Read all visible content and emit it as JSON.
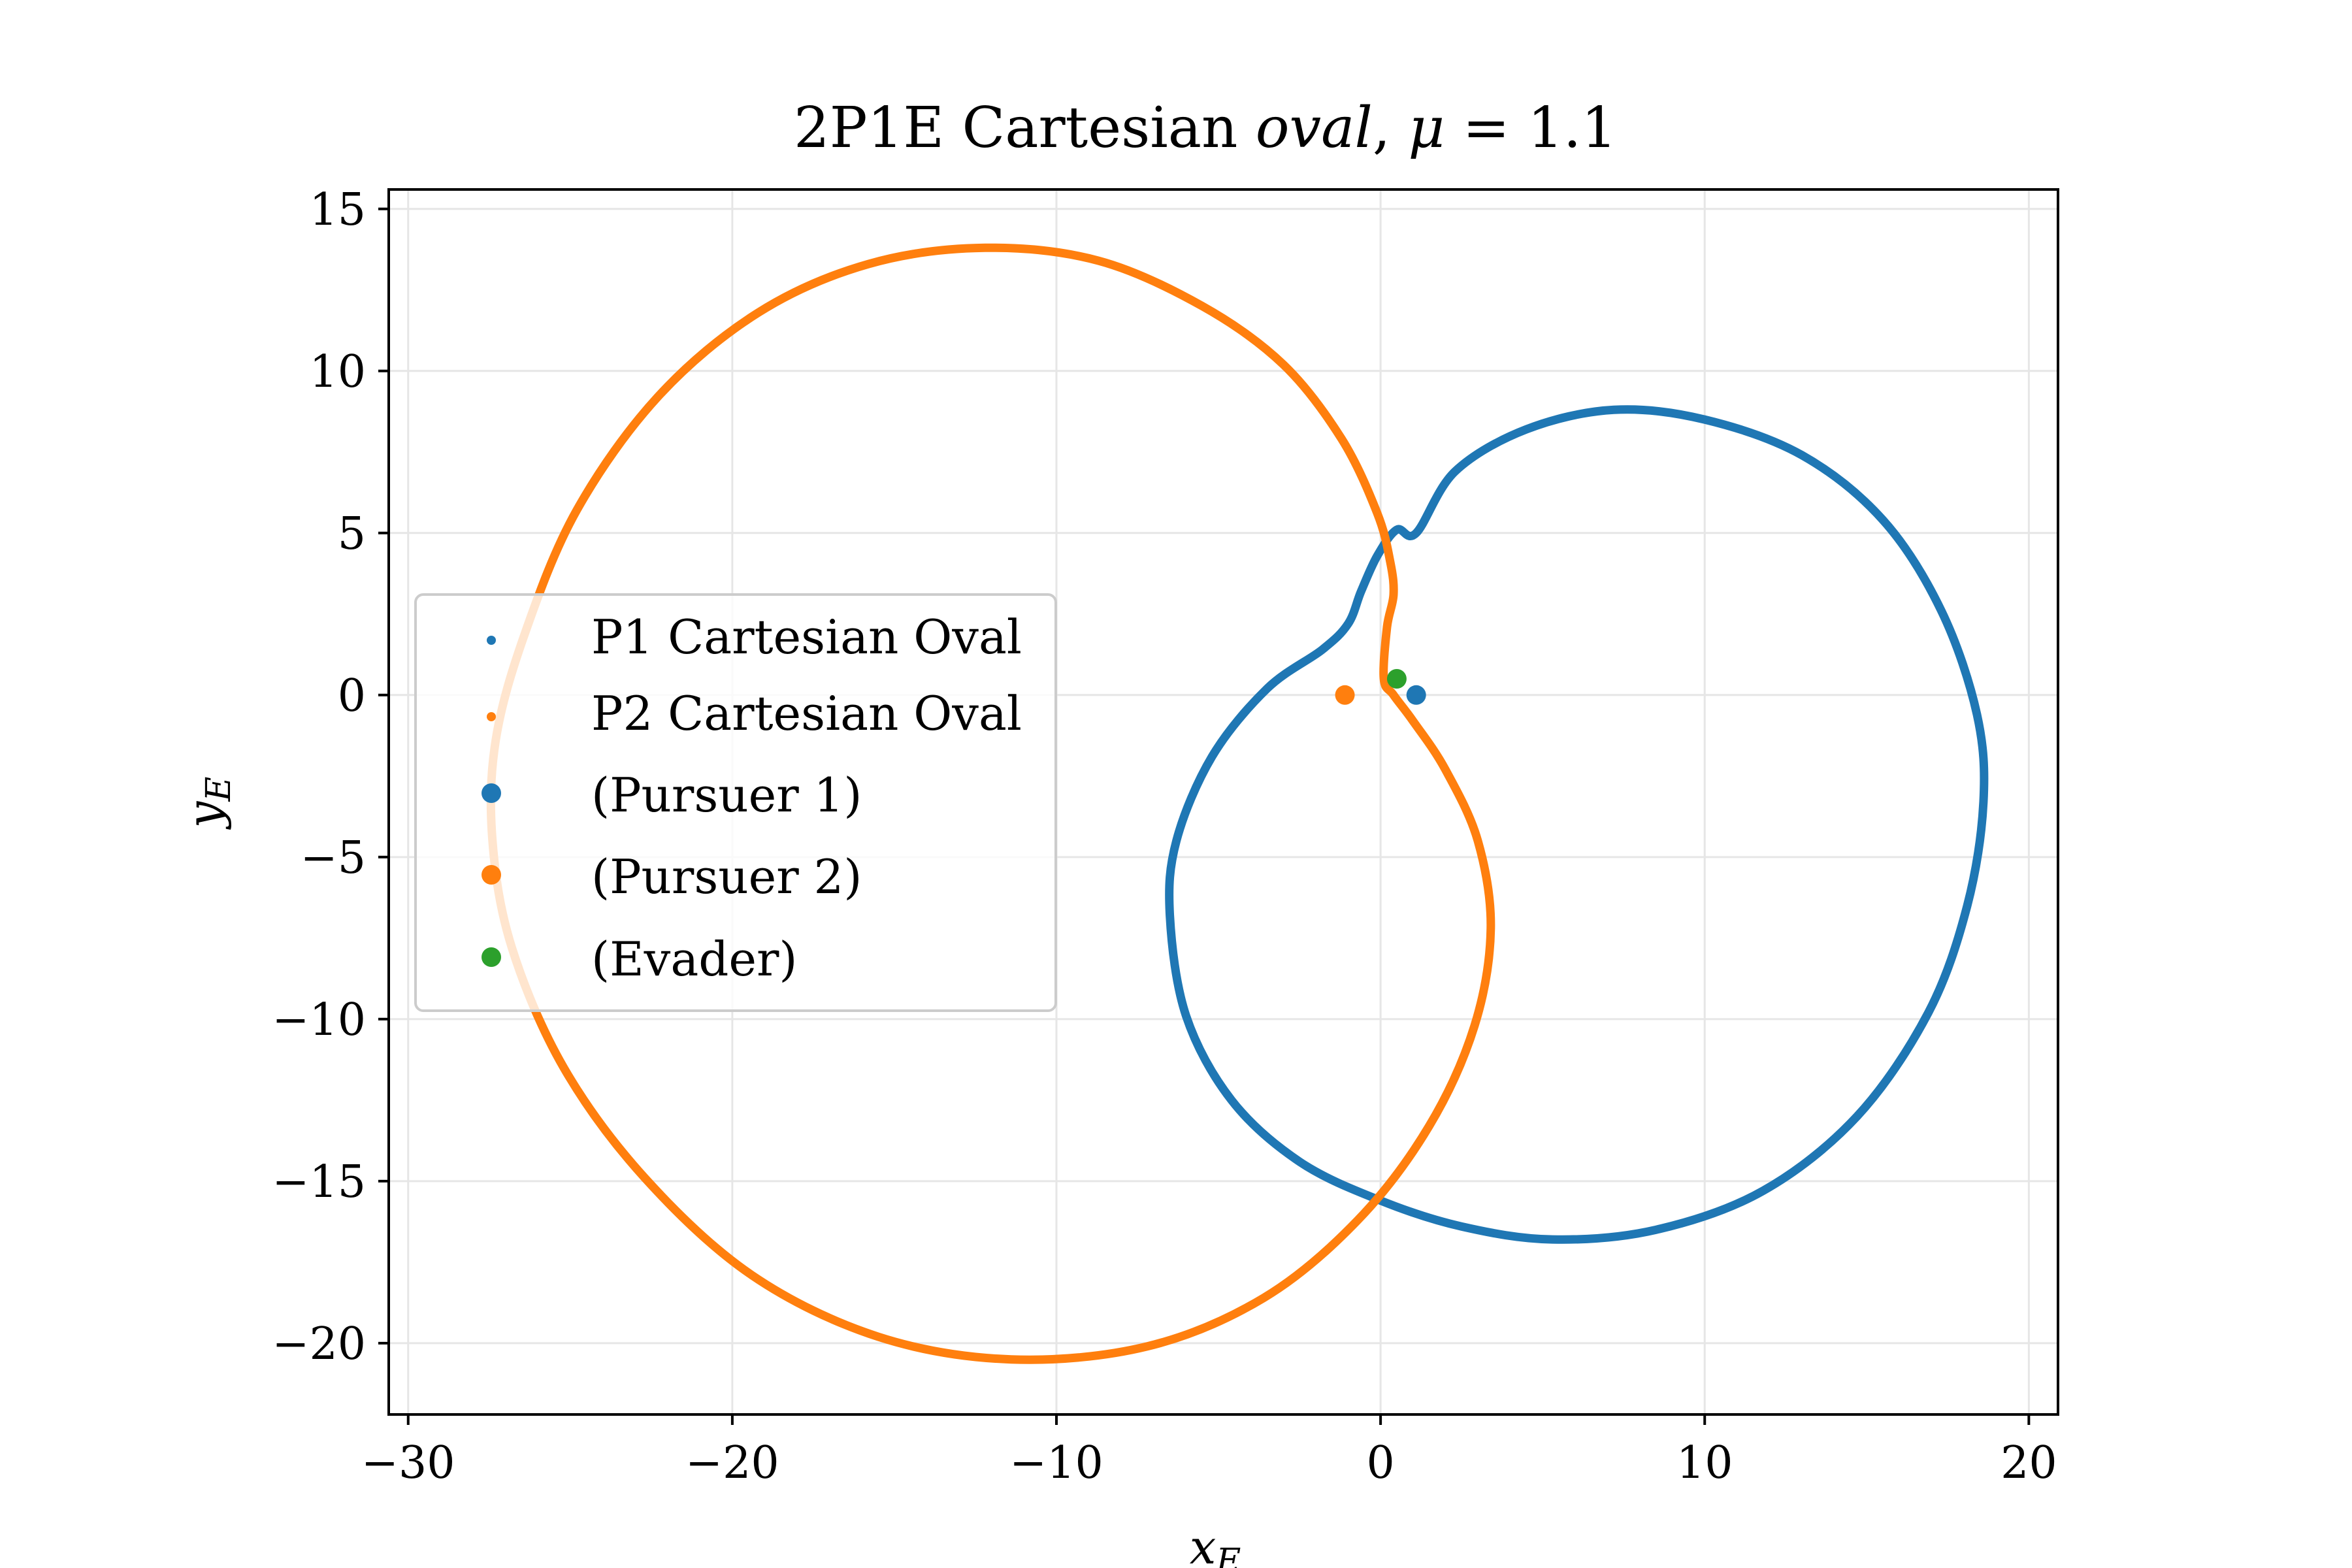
{
  "chart_data": {
    "type": "scatter",
    "title": "2P1E Cartesian oval, μ = 1.1",
    "title_parts": {
      "prefix": "2P1E Cartesian ",
      "italic_word": "oval",
      "mu_symbol": "μ",
      "mu_eq": " = 1.1"
    },
    "xlabel": "x",
    "xlabel_sub": "E",
    "ylabel": "y",
    "ylabel_sub": "E",
    "xlim": [
      -30.6,
      20.9
    ],
    "ylim": [
      -22.2,
      15.6
    ],
    "xticks": [
      -30,
      -20,
      -10,
      0,
      10,
      20
    ],
    "yticks": [
      -20,
      -15,
      -10,
      -5,
      0,
      5,
      10,
      15
    ],
    "xtick_labels": [
      "−30",
      "−20",
      "−10",
      "0",
      "10",
      "20"
    ],
    "ytick_labels": [
      "−20",
      "−15",
      "−10",
      "−5",
      "0",
      "5",
      "10",
      "15"
    ],
    "grid": true,
    "legend_position": "center-left",
    "series": [
      {
        "name": "P1 Cartesian Oval",
        "kind": "curve",
        "color": "#1f77b4",
        "points": [
          [
            1.1,
            5.0
          ],
          [
            2.3,
            6.9
          ],
          [
            4.5,
            8.2
          ],
          [
            7.2,
            8.8
          ],
          [
            10.0,
            8.5
          ],
          [
            13.0,
            7.4
          ],
          [
            15.5,
            5.4
          ],
          [
            17.3,
            2.6
          ],
          [
            18.4,
            -0.6
          ],
          [
            18.6,
            -3.3
          ],
          [
            18.1,
            -6.5
          ],
          [
            16.9,
            -9.8
          ],
          [
            14.7,
            -13.0
          ],
          [
            11.8,
            -15.3
          ],
          [
            8.5,
            -16.5
          ],
          [
            5.3,
            -16.8
          ],
          [
            2.5,
            -16.4
          ],
          [
            0.0,
            -15.6
          ],
          [
            -2.5,
            -14.4
          ],
          [
            -4.6,
            -12.5
          ],
          [
            -6.0,
            -9.9
          ],
          [
            -6.5,
            -6.8
          ],
          [
            -6.3,
            -4.5
          ],
          [
            -5.2,
            -1.9
          ],
          [
            -3.5,
            0.2
          ],
          [
            -1.8,
            1.4
          ],
          [
            -1.0,
            2.2
          ],
          [
            -0.6,
            3.2
          ],
          [
            -0.1,
            4.3
          ],
          [
            0.5,
            5.1
          ],
          [
            1.1,
            5.0
          ]
        ]
      },
      {
        "name": "P2 Cartesian Oval",
        "kind": "curve",
        "color": "#ff7f0e",
        "points": [
          [
            0.1,
            0.5
          ],
          [
            0.2,
            2.1
          ],
          [
            0.4,
            3.1
          ],
          [
            0.3,
            4.1
          ],
          [
            -0.1,
            5.6
          ],
          [
            -1.2,
            7.9
          ],
          [
            -3.0,
            10.2
          ],
          [
            -5.5,
            12.0
          ],
          [
            -8.7,
            13.4
          ],
          [
            -12.2,
            13.8
          ],
          [
            -15.8,
            13.3
          ],
          [
            -19.2,
            11.8
          ],
          [
            -22.3,
            9.2
          ],
          [
            -24.8,
            5.7
          ],
          [
            -26.4,
            1.9
          ],
          [
            -27.3,
            -1.4
          ],
          [
            -27.4,
            -4.5
          ],
          [
            -26.8,
            -7.8
          ],
          [
            -25.2,
            -11.5
          ],
          [
            -22.7,
            -14.9
          ],
          [
            -19.4,
            -17.9
          ],
          [
            -15.5,
            -19.8
          ],
          [
            -11.4,
            -20.5
          ],
          [
            -7.2,
            -20.1
          ],
          [
            -3.6,
            -18.6
          ],
          [
            -0.7,
            -16.2
          ],
          [
            1.5,
            -13.3
          ],
          [
            2.9,
            -10.2
          ],
          [
            3.4,
            -7.2
          ],
          [
            3.0,
            -4.5
          ],
          [
            2.0,
            -2.3
          ],
          [
            1.0,
            -0.8
          ],
          [
            0.4,
            0.0
          ],
          [
            0.1,
            0.5
          ]
        ]
      },
      {
        "name": "(Pursuer 1)",
        "kind": "point",
        "color": "#1f77b4",
        "x": 1.1,
        "y": 0.0
      },
      {
        "name": "(Pursuer 2)",
        "kind": "point",
        "color": "#ff7f0e",
        "x": -1.1,
        "y": 0.0
      },
      {
        "name": "(Evader)",
        "kind": "point",
        "color": "#2ca02c",
        "x": 0.5,
        "y": 0.5
      }
    ]
  }
}
